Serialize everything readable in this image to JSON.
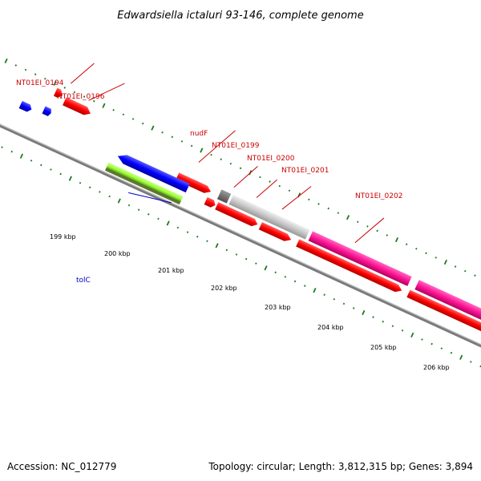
{
  "title": "Edwardsiella ictaluri 93-146, complete genome",
  "accession": "Accession: NC_012779",
  "topology": "Topology: circular; Length: 3,812,315 bp; Genes: 3,894",
  "gene_labels": {
    "g0194": "NT01EI_0194",
    "g0196": "NT01EI_0196",
    "nudF": "nudF",
    "g0199": "NT01EI_0199",
    "g0200": "NT01EI_0200",
    "g0201": "NT01EI_0201",
    "g0202": "NT01EI_0202",
    "tolC": "tolC"
  },
  "kbp_labels": {
    "k199": "199 kbp",
    "k200": "200 kbp",
    "k201": "201 kbp",
    "k202": "202 kbp",
    "k203": "203 kbp",
    "k204": "204 kbp",
    "k205": "205 kbp",
    "k206": "206 kbp"
  },
  "colors": {
    "backbone": "#808080",
    "cds": "#ff0000",
    "rrna": "#0000ff",
    "trna": "#99ff33",
    "misc": "#c8c8c8",
    "mobile": "#ff1493",
    "gc_skew": "#1f7a1f",
    "label_red": "#cc0000",
    "label_blue": "#0000cc"
  }
}
